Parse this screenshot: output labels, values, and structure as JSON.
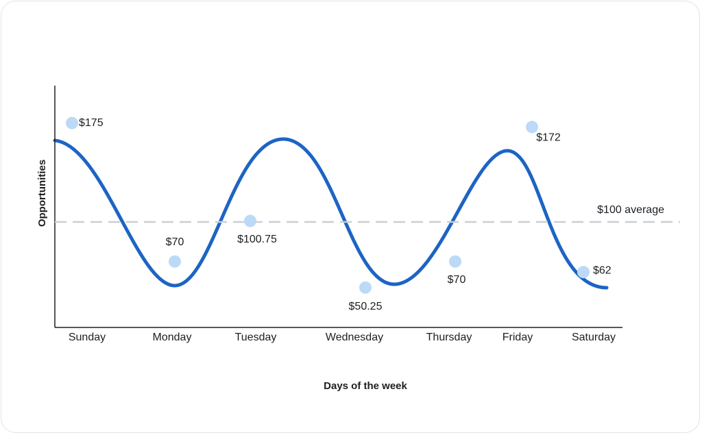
{
  "chart_data": {
    "type": "scatter",
    "x_label": "Days of the week",
    "y_label": "Opportunities",
    "categories": [
      "Sunday",
      "Monday",
      "Tuesday",
      "Wednesday",
      "Thursday",
      "Friday",
      "Saturday"
    ],
    "values": [
      175,
      70,
      100.75,
      50.25,
      70,
      172,
      62
    ],
    "value_labels": [
      "$175",
      "$70",
      "$100.75",
      "$50.25",
      "$70",
      "$172",
      "$62"
    ],
    "color": "#bcdaf7",
    "ylim": [
      20,
      200
    ],
    "average": {
      "value": 100,
      "label": "$100 average"
    }
  }
}
